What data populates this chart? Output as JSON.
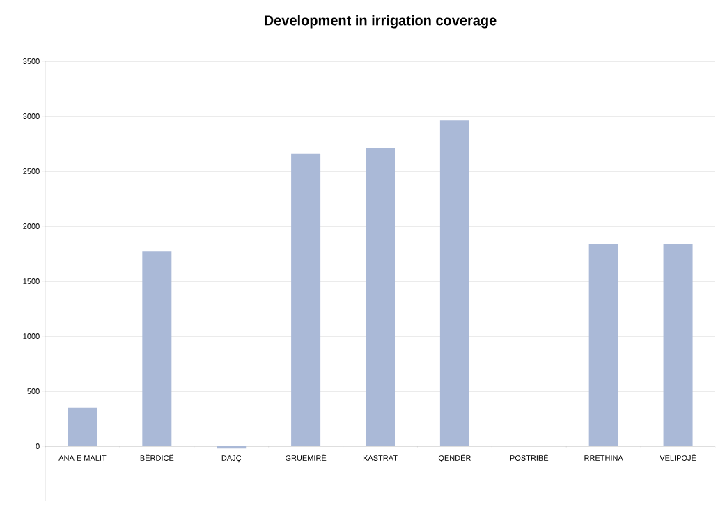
{
  "chart_data": {
    "type": "bar",
    "title": "Development in irrigation coverage",
    "categories": [
      "ANA E MALIT",
      "BËRDICË",
      "DAJÇ",
      "GRUEMIRË",
      "KASTRAT",
      "QENDËR",
      "POSTRIBË",
      "RRETHINA",
      "VELIPOJË"
    ],
    "values": [
      350,
      1770,
      -20,
      2660,
      2710,
      2960,
      0,
      1840,
      1840
    ],
    "color": "#aab9d7",
    "ylim": [
      -500,
      3500
    ],
    "yticks": [
      0,
      500,
      1000,
      1500,
      2000,
      2500,
      3000,
      3500
    ],
    "grid": "y"
  }
}
